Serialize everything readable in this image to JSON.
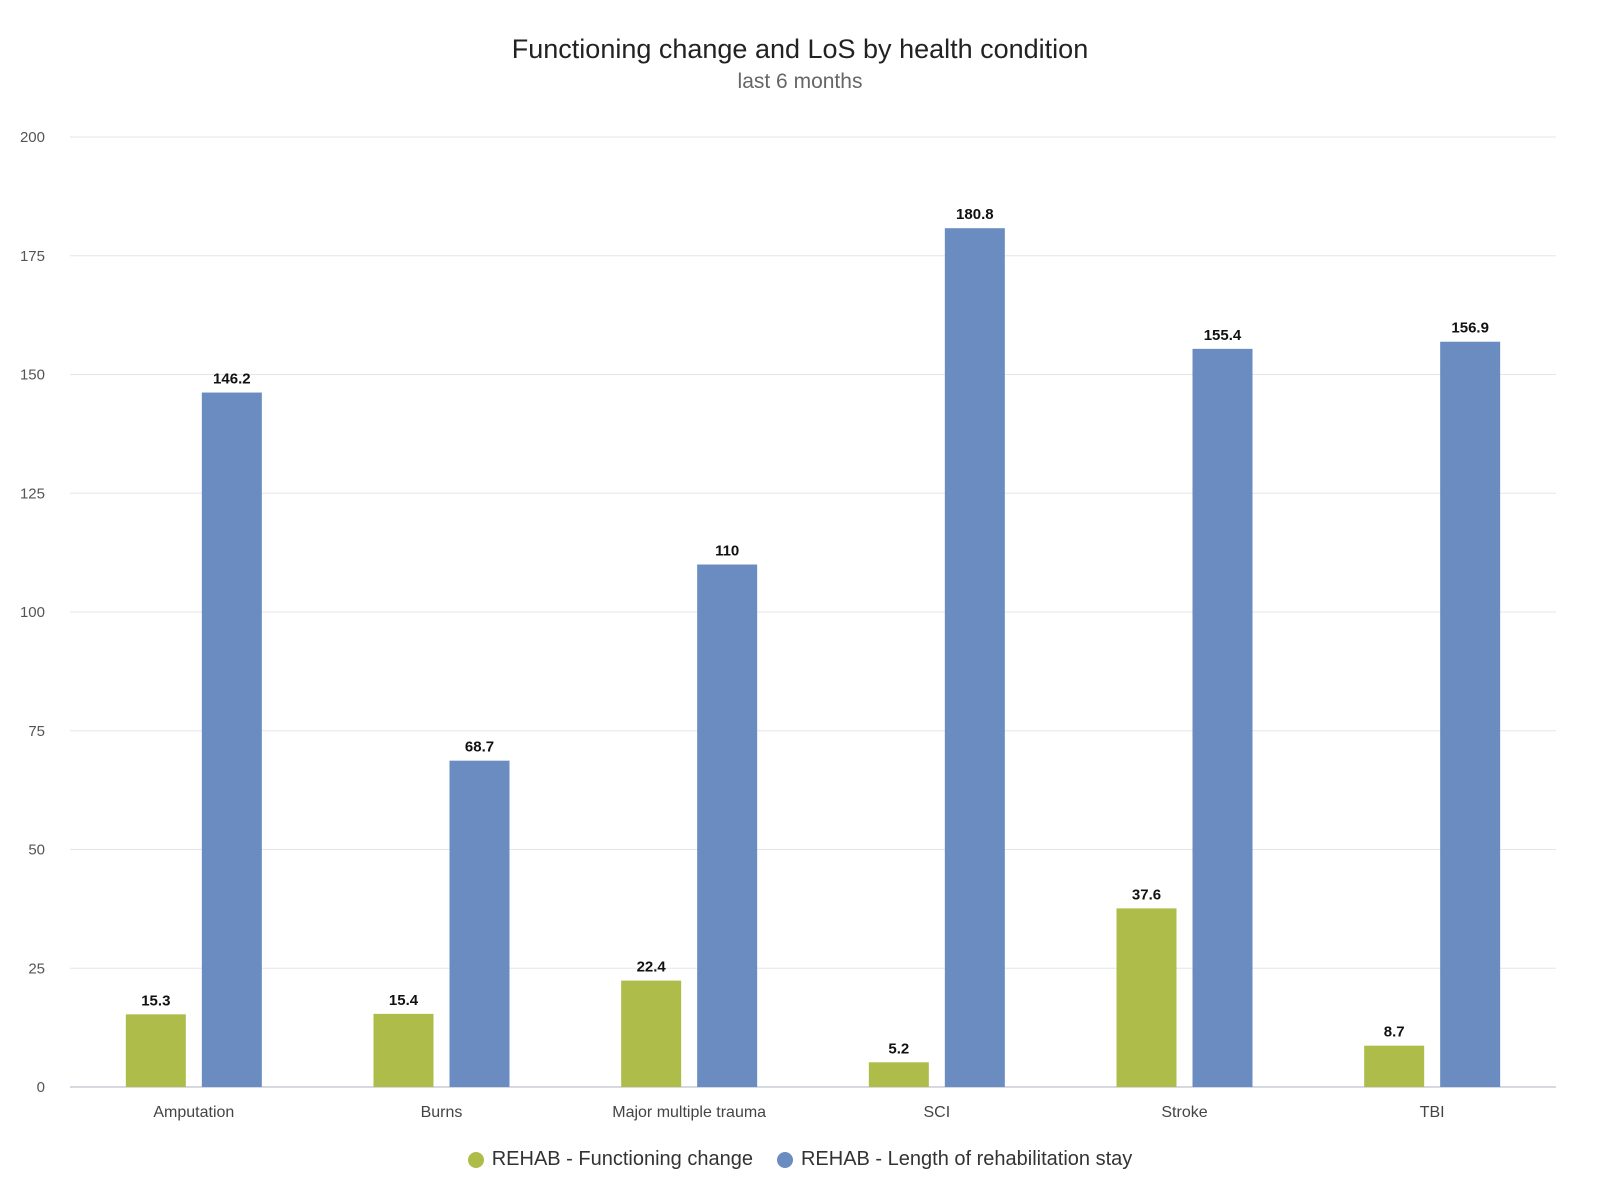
{
  "chart_data": {
    "type": "bar",
    "title": "Functioning change and LoS by health condition",
    "subtitle": "last 6 months",
    "categories": [
      "Amputation",
      "Burns",
      "Major multiple trauma",
      "SCI",
      "Stroke",
      "TBI"
    ],
    "series": [
      {
        "name": "REHAB - Functioning change",
        "color": "#aebc4a",
        "values": [
          15.3,
          15.4,
          22.4,
          5.2,
          37.6,
          8.7
        ]
      },
      {
        "name": "REHAB - Length of rehabilitation stay",
        "color": "#6a8cc0",
        "values": [
          146.2,
          68.7,
          110,
          180.8,
          155.4,
          156.9
        ]
      }
    ],
    "xlabel": "",
    "ylabel": "",
    "ylim": [
      0,
      200
    ],
    "yticks": [
      0,
      25,
      50,
      75,
      100,
      125,
      150,
      175,
      200
    ],
    "grid": true,
    "legend_position": "bottom-center",
    "data_labels": true
  }
}
